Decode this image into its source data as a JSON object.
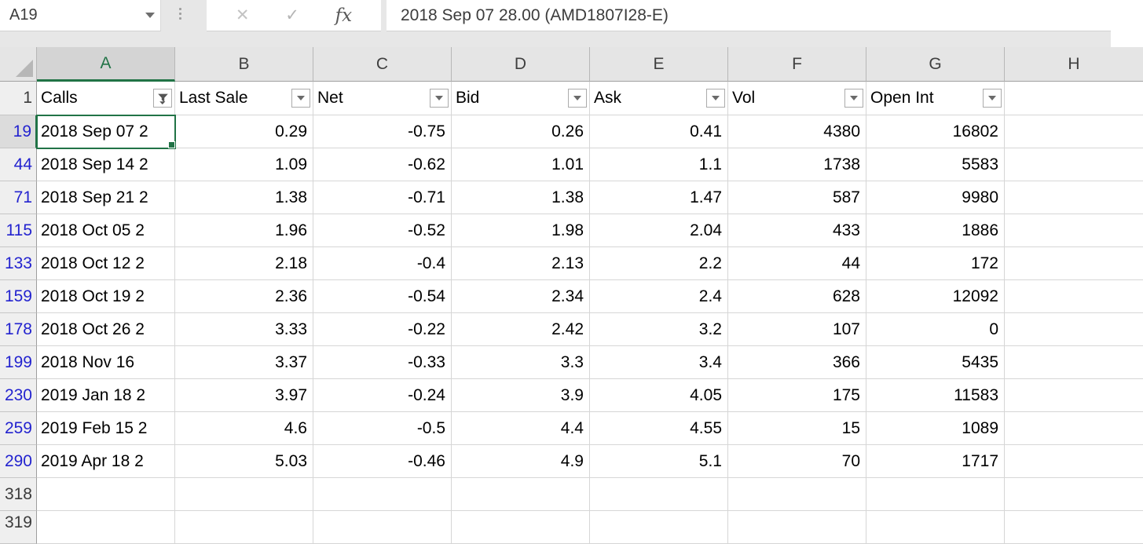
{
  "formula_bar": {
    "name_box_value": "A19",
    "formula_text": "2018 Sep 07 28.00 (AMD1807I28-E)",
    "cancel_label": "✕",
    "enter_label": "✓",
    "fx_label": "fx"
  },
  "icons": {
    "name_box_dropdown": "chevron-down",
    "filter_applied": "funnel-with-down-arrow",
    "filter_dropdown": "down-arrow"
  },
  "colors": {
    "accent_green": "#217346",
    "filtered_row_number_blue": "#2323cf",
    "header_strip_gray": "#e5e5e5",
    "gridline_gray": "#d6d6d6"
  },
  "sheet": {
    "column_letters": [
      "A",
      "B",
      "C",
      "D",
      "E",
      "F",
      "G",
      "H"
    ],
    "selected_column": "A",
    "selected_cell": "A19",
    "header_row_number": "1",
    "columns": [
      {
        "label": "Calls",
        "filter": "applied"
      },
      {
        "label": "Last Sale",
        "filter": "dropdown"
      },
      {
        "label": "Net",
        "filter": "dropdown"
      },
      {
        "label": "Bid",
        "filter": "dropdown"
      },
      {
        "label": "Ask",
        "filter": "dropdown"
      },
      {
        "label": "Vol",
        "filter": "dropdown"
      },
      {
        "label": "Open Int",
        "filter": "dropdown"
      }
    ],
    "rows": [
      {
        "num": "19",
        "filtered": true,
        "selected": true,
        "calls": "2018 Sep 07 2",
        "last_sale": "0.29",
        "net": "-0.75",
        "bid": "0.26",
        "ask": "0.41",
        "vol": "4380",
        "open_int": "16802"
      },
      {
        "num": "44",
        "filtered": true,
        "calls": "2018 Sep 14 2",
        "last_sale": "1.09",
        "net": "-0.62",
        "bid": "1.01",
        "ask": "1.1",
        "vol": "1738",
        "open_int": "5583"
      },
      {
        "num": "71",
        "filtered": true,
        "calls": "2018 Sep 21 2",
        "last_sale": "1.38",
        "net": "-0.71",
        "bid": "1.38",
        "ask": "1.47",
        "vol": "587",
        "open_int": "9980"
      },
      {
        "num": "115",
        "filtered": true,
        "calls": "2018 Oct 05 2",
        "last_sale": "1.96",
        "net": "-0.52",
        "bid": "1.98",
        "ask": "2.04",
        "vol": "433",
        "open_int": "1886"
      },
      {
        "num": "133",
        "filtered": true,
        "calls": "2018 Oct 12 2",
        "last_sale": "2.18",
        "net": "-0.4",
        "bid": "2.13",
        "ask": "2.2",
        "vol": "44",
        "open_int": "172"
      },
      {
        "num": "159",
        "filtered": true,
        "calls": "2018 Oct 19 2",
        "last_sale": "2.36",
        "net": "-0.54",
        "bid": "2.34",
        "ask": "2.4",
        "vol": "628",
        "open_int": "12092"
      },
      {
        "num": "178",
        "filtered": true,
        "calls": "2018 Oct 26 2",
        "last_sale": "3.33",
        "net": "-0.22",
        "bid": "2.42",
        "ask": "3.2",
        "vol": "107",
        "open_int": "0"
      },
      {
        "num": "199",
        "filtered": true,
        "calls": "2018 Nov 16",
        "last_sale": "3.37",
        "net": "-0.33",
        "bid": "3.3",
        "ask": "3.4",
        "vol": "366",
        "open_int": "5435"
      },
      {
        "num": "230",
        "filtered": true,
        "calls": "2019 Jan 18 2",
        "last_sale": "3.97",
        "net": "-0.24",
        "bid": "3.9",
        "ask": "4.05",
        "vol": "175",
        "open_int": "11583"
      },
      {
        "num": "259",
        "filtered": true,
        "calls": "2019 Feb 15 2",
        "last_sale": "4.6",
        "net": "-0.5",
        "bid": "4.4",
        "ask": "4.55",
        "vol": "15",
        "open_int": "1089"
      },
      {
        "num": "290",
        "filtered": true,
        "calls": "2019 Apr 18 2",
        "last_sale": "5.03",
        "net": "-0.46",
        "bid": "4.9",
        "ask": "5.1",
        "vol": "70",
        "open_int": "1717"
      },
      {
        "num": "318",
        "filtered": false,
        "calls": "",
        "last_sale": "",
        "net": "",
        "bid": "",
        "ask": "",
        "vol": "",
        "open_int": ""
      },
      {
        "num": "319",
        "filtered": false,
        "partial": true,
        "calls": "",
        "last_sale": "",
        "net": "",
        "bid": "",
        "ask": "",
        "vol": "",
        "open_int": ""
      }
    ]
  }
}
